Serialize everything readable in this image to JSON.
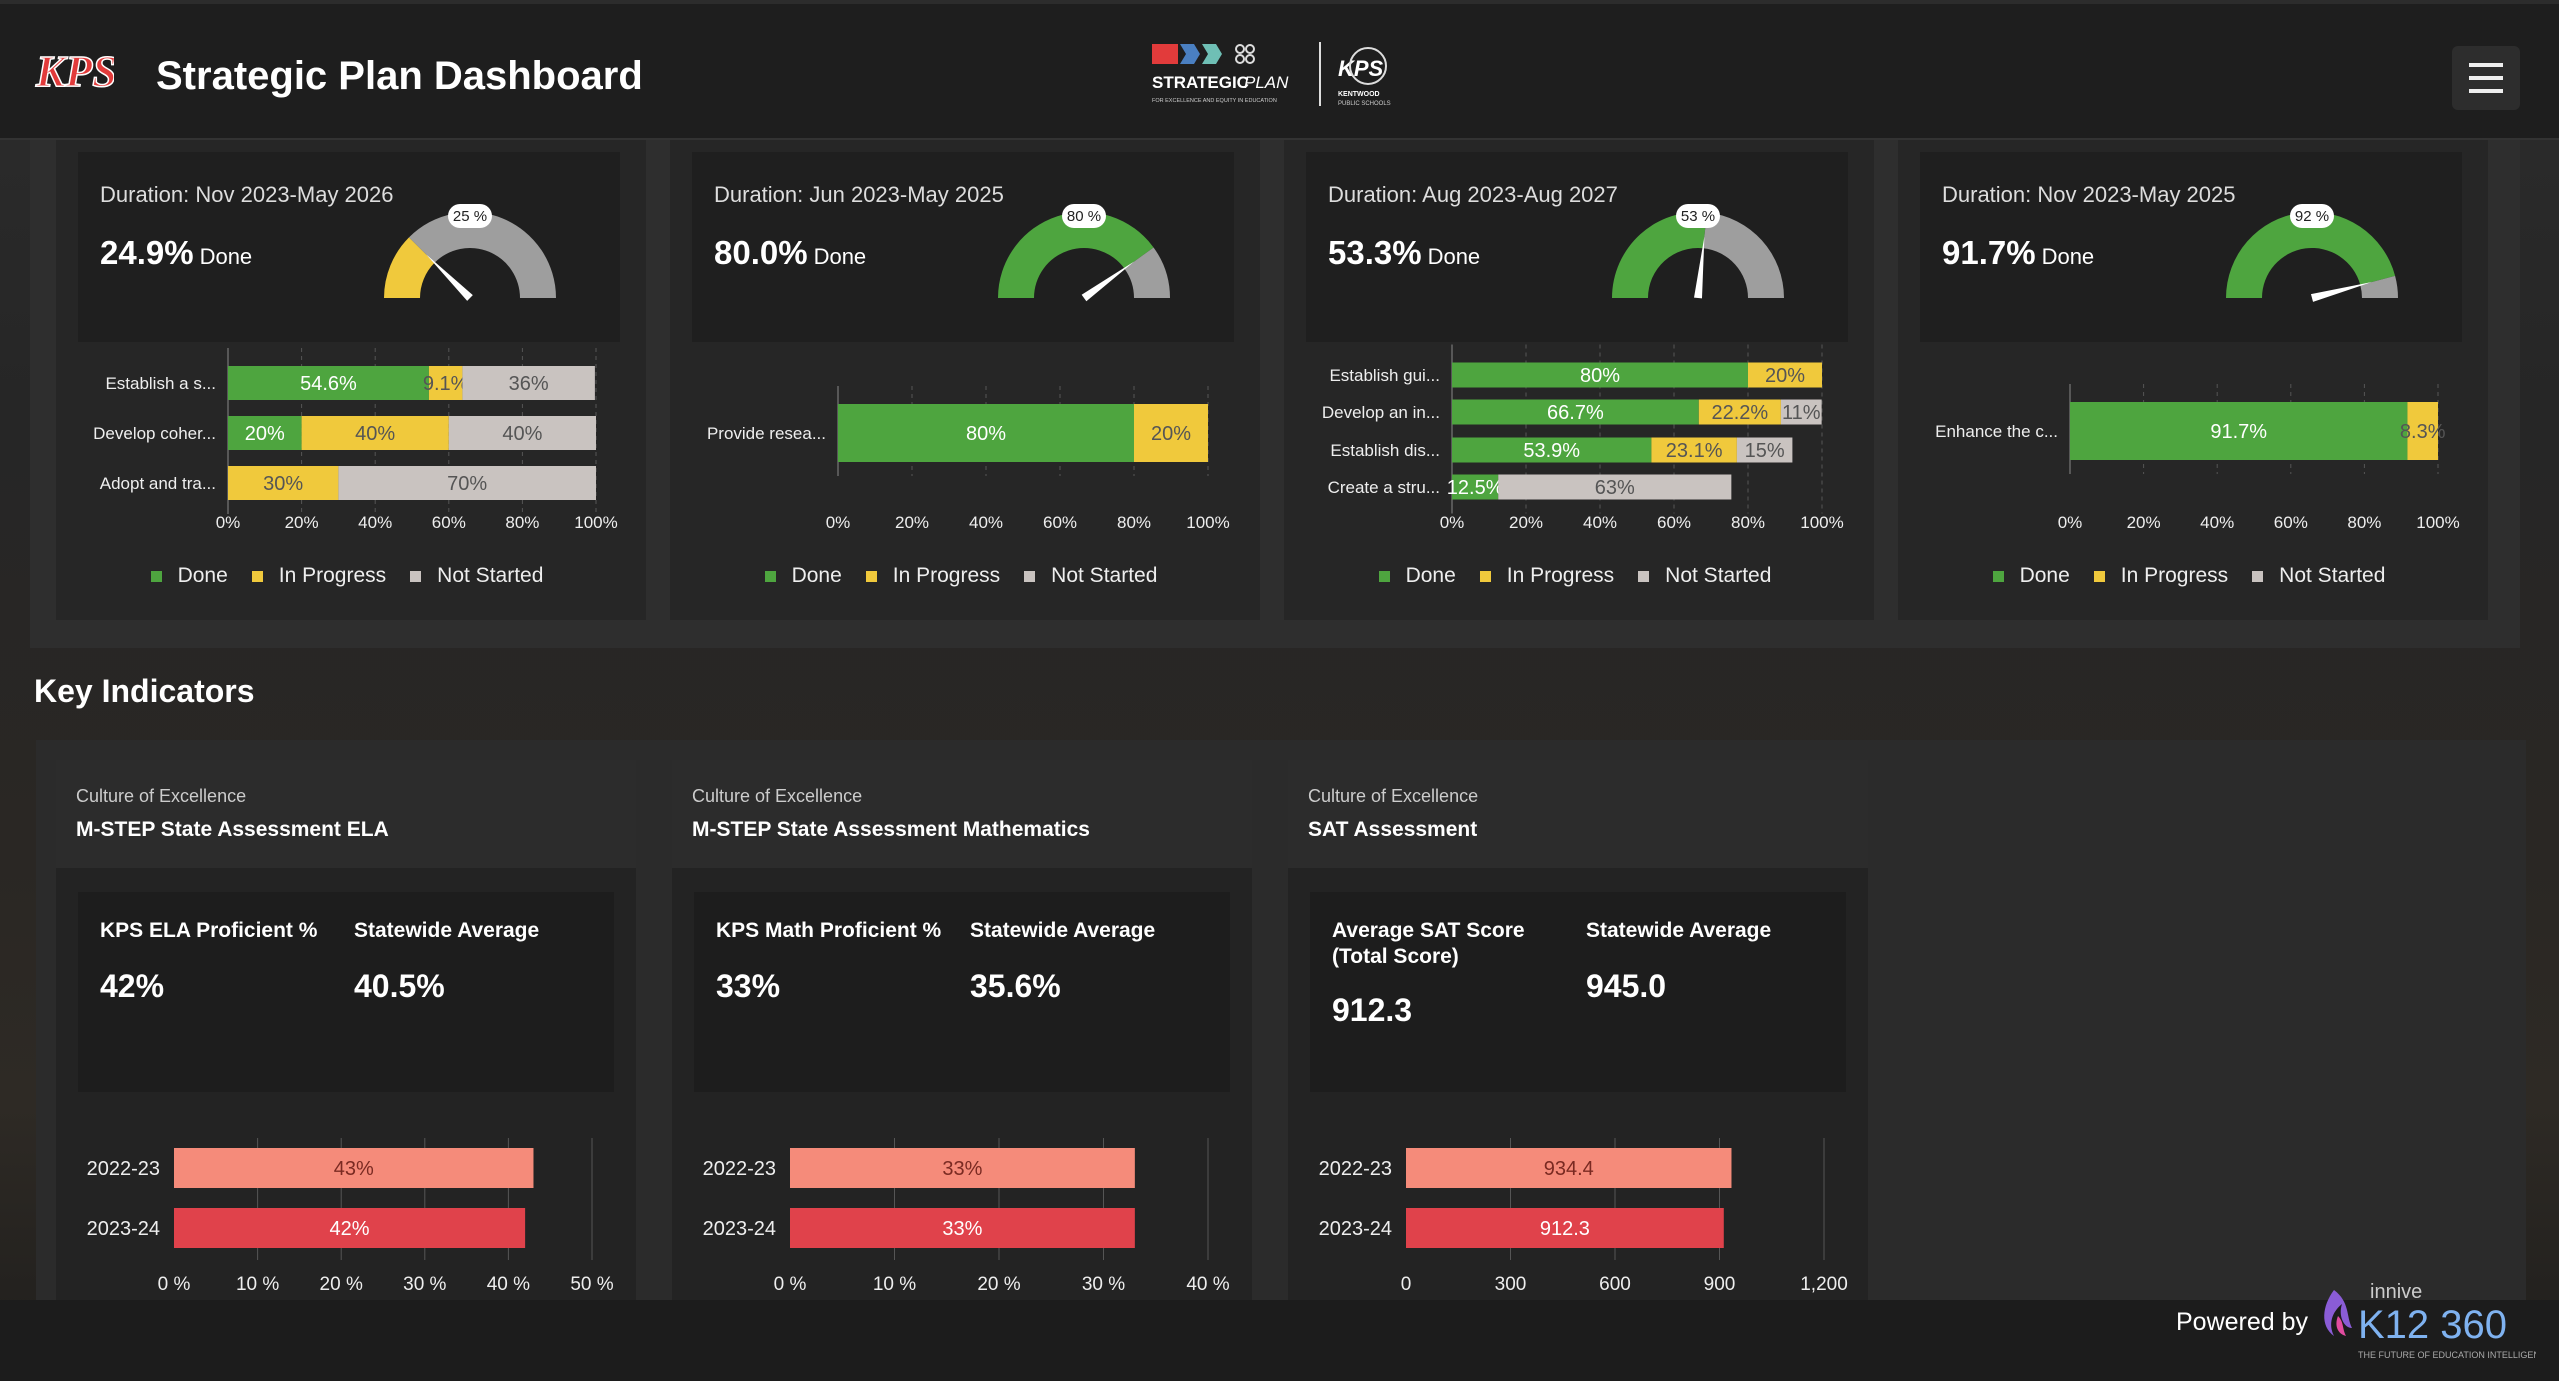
{
  "header": {
    "title": "Strategic Plan Dashboard",
    "logo_text": "KPS",
    "strategic_plan_logo": {
      "line1": "STRATEGIC",
      "line2": "PLAN",
      "tagline": "FOR EXCELLENCE AND EQUITY IN EDUCATION",
      "district_logo": "KPS",
      "district_name": "KENTWOOD",
      "district_sub": "PUBLIC SCHOOLS"
    },
    "menu_icon": "hamburger-icon"
  },
  "colors": {
    "done": "#4ea53f",
    "in_progress": "#f0c93c",
    "not_started": "#c9c3c0",
    "gauge_rest": "#9e9e9e",
    "bar_prev": "#f58b7a",
    "bar_curr": "#e0424b"
  },
  "goal_cards": [
    {
      "duration": "Duration: Nov 2023-May 2026",
      "pct": "24.9%",
      "done_label": "Done",
      "gauge_label": "25 %",
      "gauge_value": 24.9,
      "chart_data": {
        "type": "bar",
        "orientation": "horizontal",
        "stacked": true,
        "xlim": [
          0,
          100
        ],
        "categories": [
          "Establish a s...",
          "Develop coher...",
          "Adopt and tra..."
        ],
        "series": [
          {
            "name": "Done",
            "values": [
              54.6,
              20,
              0
            ]
          },
          {
            "name": "In Progress",
            "values": [
              9.1,
              40,
              30
            ]
          },
          {
            "name": "Not Started",
            "values": [
              36,
              40,
              70
            ]
          }
        ],
        "labels": [
          [
            "54.6%",
            "9.1%",
            "36%"
          ],
          [
            "20%",
            "40%",
            "40%"
          ],
          [
            "",
            "30%",
            "70%"
          ]
        ],
        "ticks": [
          "0%",
          "20%",
          "40%",
          "60%",
          "80%",
          "100%"
        ]
      }
    },
    {
      "duration": "Duration: Jun 2023-May 2025",
      "pct": "80.0%",
      "done_label": "Done",
      "gauge_label": "80 %",
      "gauge_value": 80,
      "chart_data": {
        "type": "bar",
        "orientation": "horizontal",
        "stacked": true,
        "xlim": [
          0,
          100
        ],
        "categories": [
          "Provide resea..."
        ],
        "series": [
          {
            "name": "Done",
            "values": [
              80
            ]
          },
          {
            "name": "In Progress",
            "values": [
              20
            ]
          },
          {
            "name": "Not Started",
            "values": [
              0
            ]
          }
        ],
        "labels": [
          [
            "80%",
            "20%",
            ""
          ]
        ],
        "ticks": [
          "0%",
          "20%",
          "40%",
          "60%",
          "80%",
          "100%"
        ]
      }
    },
    {
      "duration": "Duration: Aug 2023-Aug 2027",
      "pct": "53.3%",
      "done_label": "Done",
      "gauge_label": "53 %",
      "gauge_value": 53.3,
      "chart_data": {
        "type": "bar",
        "orientation": "horizontal",
        "stacked": true,
        "xlim": [
          0,
          100
        ],
        "categories": [
          "Establish gui...",
          "Develop an in...",
          "Establish dis...",
          "Create a stru..."
        ],
        "series": [
          {
            "name": "Done",
            "values": [
              80,
              66.7,
              53.9,
              12.5
            ]
          },
          {
            "name": "In Progress",
            "values": [
              20,
              22.2,
              23.1,
              0
            ]
          },
          {
            "name": "Not Started",
            "values": [
              0,
              11,
              15,
              63
            ]
          }
        ],
        "labels": [
          [
            "80%",
            "20%",
            ""
          ],
          [
            "66.7%",
            "22.2%",
            "11%"
          ],
          [
            "53.9%",
            "23.1%",
            "15%"
          ],
          [
            "12.5%",
            "",
            "63%"
          ]
        ],
        "ticks": [
          "0%",
          "20%",
          "40%",
          "60%",
          "80%",
          "100%"
        ]
      }
    },
    {
      "duration": "Duration: Nov 2023-May 2025",
      "pct": "91.7%",
      "done_label": "Done",
      "gauge_label": "92 %",
      "gauge_value": 91.7,
      "chart_data": {
        "type": "bar",
        "orientation": "horizontal",
        "stacked": true,
        "xlim": [
          0,
          100
        ],
        "categories": [
          "Enhance the c..."
        ],
        "series": [
          {
            "name": "Done",
            "values": [
              91.7
            ]
          },
          {
            "name": "In Progress",
            "values": [
              8.3
            ]
          },
          {
            "name": "Not Started",
            "values": [
              0
            ]
          }
        ],
        "labels": [
          [
            "91.7%",
            "8.3%",
            ""
          ]
        ],
        "ticks": [
          "0%",
          "20%",
          "40%",
          "60%",
          "80%",
          "100%"
        ]
      }
    }
  ],
  "legend": {
    "done": "Done",
    "in_progress": "In Progress",
    "not_started": "Not Started"
  },
  "key_indicators": {
    "title": "Key Indicators",
    "cards": [
      {
        "category": "Culture of Excellence",
        "name": "M-STEP State Assessment ELA",
        "label1": "KPS ELA Proficient %",
        "value1": "42%",
        "label2": "Statewide Average",
        "value2": "40.5%",
        "chart_data": {
          "type": "bar",
          "orientation": "horizontal",
          "categories": [
            "2022-23",
            "2023-24"
          ],
          "values": [
            43,
            42
          ],
          "labels": [
            "43%",
            "42%"
          ],
          "xlim": [
            0,
            50
          ],
          "ticks": [
            "0 %",
            "10 %",
            "20 %",
            "30 %",
            "40 %",
            "50 %"
          ]
        }
      },
      {
        "category": "Culture of Excellence",
        "name": "M-STEP State Assessment Mathematics",
        "label1": "KPS Math Proficient %",
        "value1": "33%",
        "label2": "Statewide Average",
        "value2": "35.6%",
        "chart_data": {
          "type": "bar",
          "orientation": "horizontal",
          "categories": [
            "2022-23",
            "2023-24"
          ],
          "values": [
            33,
            33
          ],
          "labels": [
            "33%",
            "33%"
          ],
          "xlim": [
            0,
            40
          ],
          "ticks": [
            "0 %",
            "10 %",
            "20 %",
            "30 %",
            "40 %"
          ]
        }
      },
      {
        "category": "Culture of Excellence",
        "name": "SAT Assessment",
        "label1": "Average SAT Score (Total Score)",
        "value1": "912.3",
        "label2": "Statewide Average",
        "value2": "945.0",
        "chart_data": {
          "type": "bar",
          "orientation": "horizontal",
          "categories": [
            "2022-23",
            "2023-24"
          ],
          "values": [
            934.4,
            912.3
          ],
          "labels": [
            "934.4",
            "912.3"
          ],
          "xlim": [
            0,
            1200
          ],
          "ticks": [
            "0",
            "300",
            "600",
            "900",
            "1,200"
          ]
        }
      }
    ]
  },
  "footer": {
    "powered_by": "Powered by",
    "brand_top": "innive",
    "brand": "K12 360",
    "brand_tagline": "THE FUTURE OF EDUCATION INTELLIGENCE"
  }
}
